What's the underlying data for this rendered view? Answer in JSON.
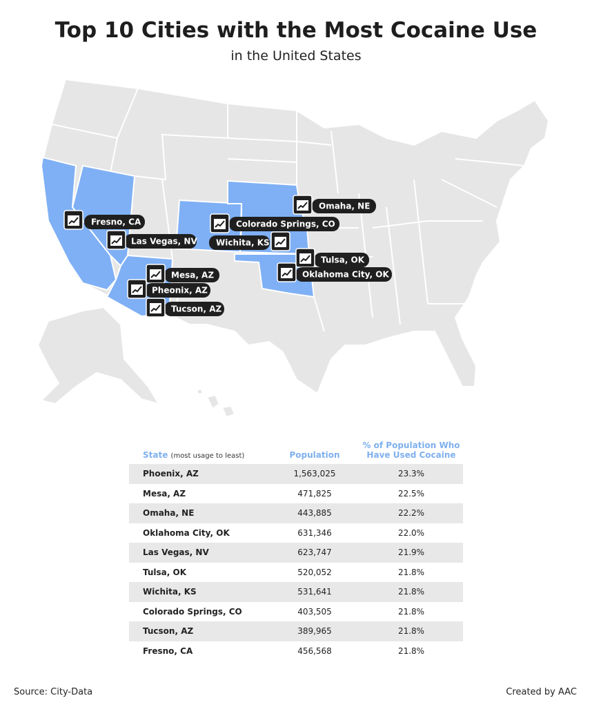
{
  "header": {
    "title": "Top 10 Cities with the Most Cocaine Use",
    "subtitle": "in the United States"
  },
  "map": {
    "labels": [
      "Fresno, CA",
      "Las Vegas, NV",
      "Omaha, NE",
      "Colorado Springs, CO",
      "Wichita, KS",
      "Tulsa, OK",
      "Oklahoma City, OK",
      "Mesa, AZ",
      "Pheonix, AZ",
      "Tucson, AZ"
    ]
  },
  "table": {
    "header": {
      "state": "State",
      "state_note": "(most usage to least)",
      "population": "Population",
      "percent": "% of Population Who Have Used Cocaine"
    },
    "rows": [
      [
        "Phoenix, AZ",
        "1,563,025",
        "23.3%"
      ],
      [
        "Mesa, AZ",
        "471,825",
        "22.5%"
      ],
      [
        "Omaha, NE",
        "443,885",
        "22.2%"
      ],
      [
        "Oklahoma City, OK",
        "631,346",
        "22.0%"
      ],
      [
        "Las Vegas, NV",
        "623,747",
        "21.9%"
      ],
      [
        "Tulsa, OK",
        "520,052",
        "21.8%"
      ],
      [
        "Wichita, KS",
        "531,641",
        "21.8%"
      ],
      [
        "Colorado Springs, CO",
        "403,505",
        "21.8%"
      ],
      [
        "Tucson, AZ",
        "389,965",
        "21.8%"
      ],
      [
        "Fresno, CA",
        "456,568",
        "21.8%"
      ]
    ]
  },
  "footer": {
    "source": "Source: City-Data",
    "credit": "Created by AAC"
  }
}
